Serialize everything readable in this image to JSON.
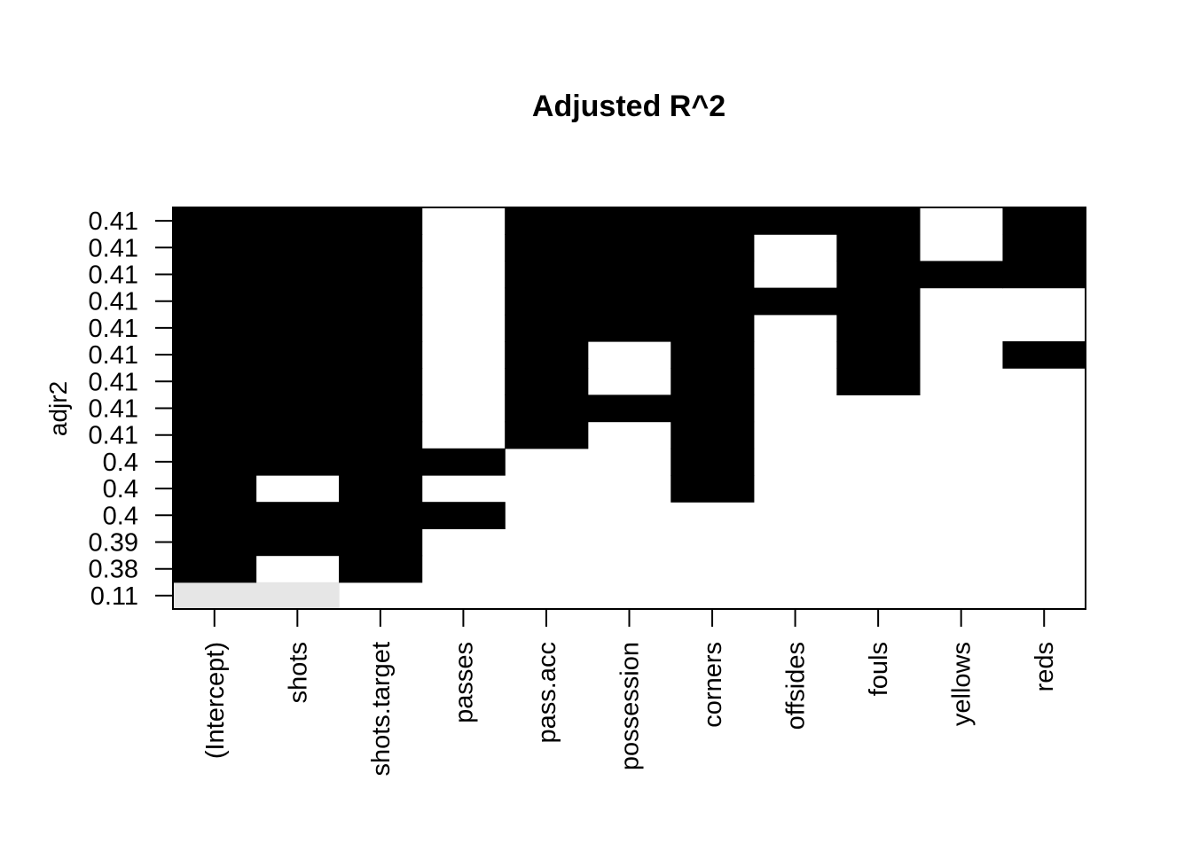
{
  "chart_data": {
    "type": "heatmap",
    "title": "Adjusted R^2",
    "ylabel": "adjr2",
    "xlabel": "",
    "x_categories": [
      "(Intercept)",
      "shots",
      "shots.target",
      "passes",
      "pass.acc",
      "possession",
      "corners",
      "offsides",
      "fouls",
      "yellows",
      "reds"
    ],
    "y_labels_bottom_to_top": [
      "0.11",
      "0.38",
      "0.39",
      "0.4",
      "0.4",
      "0.4",
      "0.41",
      "0.41",
      "0.41",
      "0.41",
      "0.41",
      "0.41",
      "0.41",
      "0.41",
      "0.41"
    ],
    "rows_bottom_to_top": [
      {
        "adjr2": "0.11",
        "included": [
          1,
          1,
          0,
          0,
          0,
          0,
          0,
          0,
          0,
          0,
          0
        ],
        "shade": "light"
      },
      {
        "adjr2": "0.38",
        "included": [
          1,
          0,
          1,
          0,
          0,
          0,
          0,
          0,
          0,
          0,
          0
        ],
        "shade": "dark"
      },
      {
        "adjr2": "0.39",
        "included": [
          1,
          1,
          1,
          0,
          0,
          0,
          0,
          0,
          0,
          0,
          0
        ],
        "shade": "dark"
      },
      {
        "adjr2": "0.4",
        "included": [
          1,
          1,
          1,
          1,
          0,
          0,
          0,
          0,
          0,
          0,
          0
        ],
        "shade": "dark"
      },
      {
        "adjr2": "0.4",
        "included": [
          1,
          0,
          1,
          0,
          0,
          0,
          1,
          0,
          0,
          0,
          0
        ],
        "shade": "dark"
      },
      {
        "adjr2": "0.4",
        "included": [
          1,
          1,
          1,
          1,
          0,
          0,
          1,
          0,
          0,
          0,
          0
        ],
        "shade": "dark"
      },
      {
        "adjr2": "0.41",
        "included": [
          1,
          1,
          1,
          0,
          1,
          0,
          1,
          0,
          0,
          0,
          0
        ],
        "shade": "dark"
      },
      {
        "adjr2": "0.41",
        "included": [
          1,
          1,
          1,
          0,
          1,
          1,
          1,
          0,
          0,
          0,
          0
        ],
        "shade": "dark"
      },
      {
        "adjr2": "0.41",
        "included": [
          1,
          1,
          1,
          0,
          1,
          0,
          1,
          0,
          1,
          0,
          0
        ],
        "shade": "dark"
      },
      {
        "adjr2": "0.41",
        "included": [
          1,
          1,
          1,
          0,
          1,
          0,
          1,
          0,
          1,
          0,
          1
        ],
        "shade": "dark"
      },
      {
        "adjr2": "0.41",
        "included": [
          1,
          1,
          1,
          0,
          1,
          1,
          1,
          0,
          1,
          0,
          0
        ],
        "shade": "dark"
      },
      {
        "adjr2": "0.41",
        "included": [
          1,
          1,
          1,
          0,
          1,
          1,
          1,
          1,
          1,
          0,
          0
        ],
        "shade": "dark"
      },
      {
        "adjr2": "0.41",
        "included": [
          1,
          1,
          1,
          0,
          1,
          1,
          1,
          0,
          1,
          1,
          1
        ],
        "shade": "dark"
      },
      {
        "adjr2": "0.41",
        "included": [
          1,
          1,
          1,
          0,
          1,
          1,
          1,
          0,
          1,
          0,
          1
        ],
        "shade": "dark"
      },
      {
        "adjr2": "0.41",
        "included": [
          1,
          1,
          1,
          0,
          1,
          1,
          1,
          1,
          1,
          0,
          1
        ],
        "shade": "dark"
      }
    ],
    "colors": {
      "dark": "#000000",
      "light": "#e6e6e6",
      "background": "#ffffff"
    },
    "grid": false,
    "legend": "none"
  }
}
